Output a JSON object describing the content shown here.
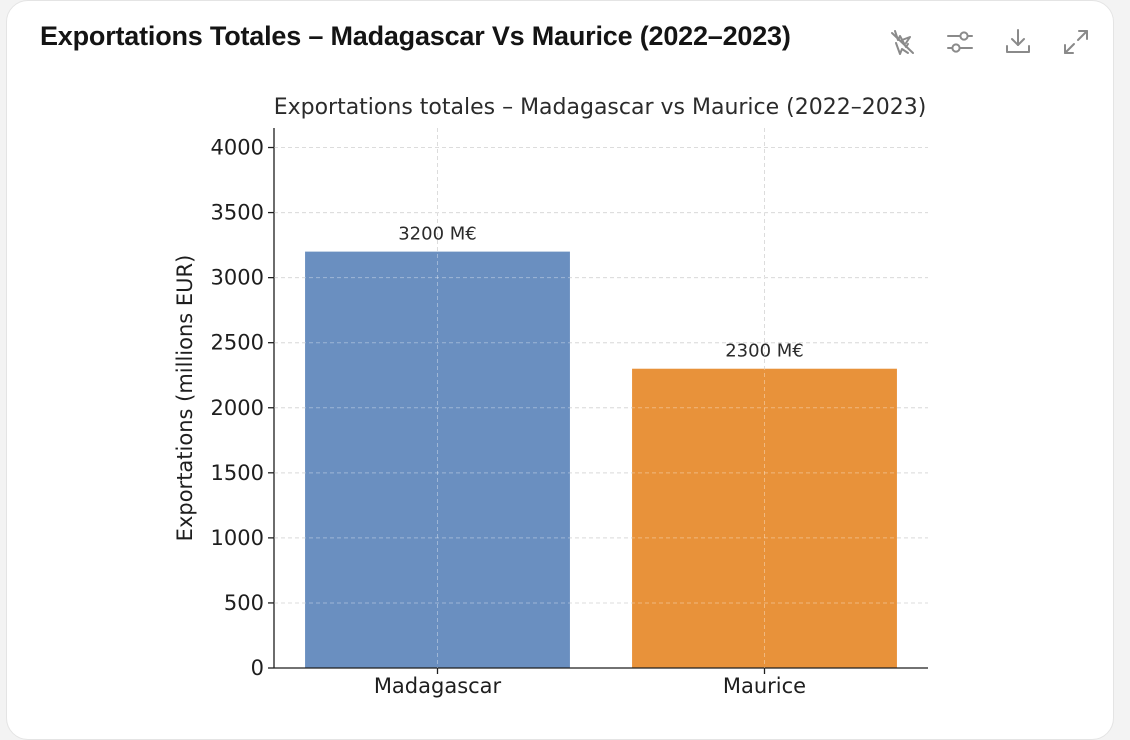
{
  "header": {
    "title": "Exportations Totales – Madagascar Vs Maurice (2022–2023)"
  },
  "toolbar": {
    "buttons": [
      {
        "name": "interactive-toggle-icon",
        "label": "Switch to interactive chart"
      },
      {
        "name": "chart-settings-icon",
        "label": "Chart settings"
      },
      {
        "name": "download-icon",
        "label": "Download"
      },
      {
        "name": "expand-icon",
        "label": "Expand"
      }
    ],
    "icon_color": "#8a8a8a"
  },
  "chart_data": {
    "type": "bar",
    "title": "Exportations totales – Madagascar vs Maurice (2022–2023)",
    "xlabel": "",
    "ylabel": "Exportations (millions EUR)",
    "categories": [
      "Madagascar",
      "Maurice"
    ],
    "values": [
      3200,
      2300
    ],
    "data_labels": [
      "3200 M€",
      "2300 M€"
    ],
    "colors": [
      "#6a8fc0",
      "#e8923a"
    ],
    "ylim": [
      0,
      4150
    ],
    "yticks": [
      0,
      500,
      1000,
      1500,
      2000,
      2500,
      3000,
      3500,
      4000
    ],
    "grid": true,
    "grid_style": "dashed",
    "legend": "none"
  }
}
